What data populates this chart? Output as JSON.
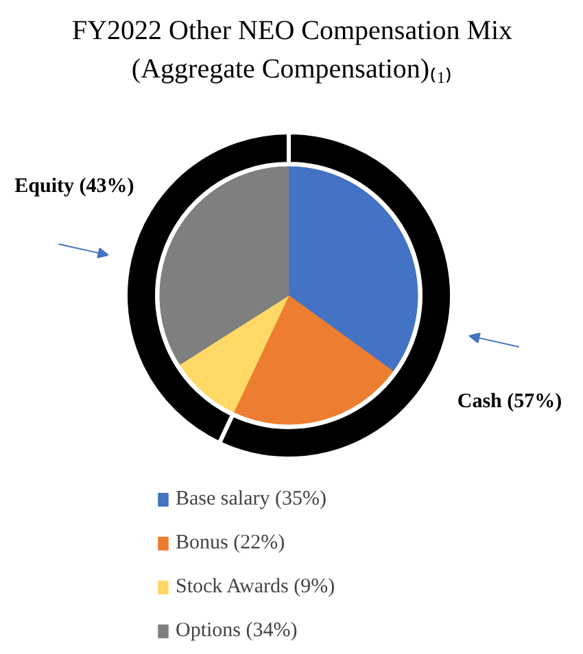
{
  "chart_data": {
    "type": "pie",
    "title": "FY2022 Other NEO Compensation Mix\n(Aggregate Compensation)₍₁₎",
    "legend": "bottom",
    "categories": [
      "Base salary (35%)",
      "Bonus (22%)",
      "Stock Awards (9%)",
      "Options (34%)"
    ],
    "series": [
      {
        "values": [
          35,
          22,
          9,
          34
        ],
        "colors": [
          "#4472c4",
          "#ed7d31",
          "#ffd966",
          "#7f7f7f"
        ]
      },
      {
        "type": "donut",
        "values": [
          57,
          null,
          null,
          43
        ],
        "colors": [
          "#000000",
          null,
          null,
          "#000000"
        ]
      }
    ],
    "annotations": [
      "Cash (57%)",
      "Equity (43%)"
    ]
  }
}
